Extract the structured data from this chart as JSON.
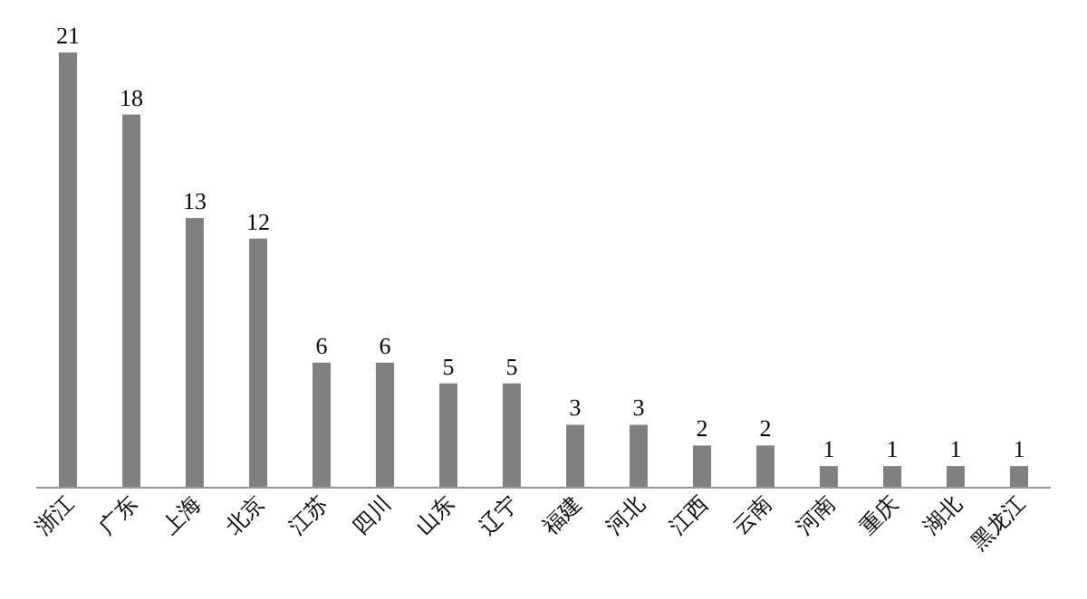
{
  "chart_data": {
    "type": "bar",
    "categories": [
      "浙江",
      "广东",
      "上海",
      "北京",
      "江苏",
      "四川",
      "山东",
      "辽宁",
      "福建",
      "河北",
      "江西",
      "云南",
      "河南",
      "重庆",
      "湖北",
      "黑龙江"
    ],
    "values": [
      21,
      18,
      13,
      12,
      6,
      6,
      5,
      5,
      3,
      3,
      2,
      2,
      1,
      1,
      1,
      1
    ],
    "color": "#808080",
    "data_labels": true
  }
}
